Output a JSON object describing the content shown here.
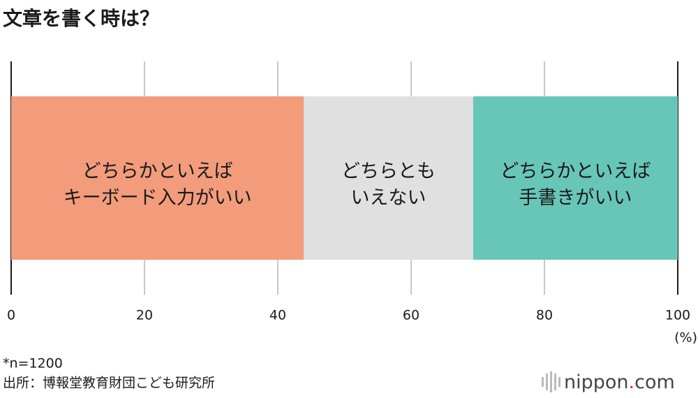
{
  "chart_data": {
    "type": "stacked-bar",
    "title": "文章を書く時は？",
    "series": [
      {
        "name": [
          "どちらかといえば",
          "キーボード入力がいい"
        ],
        "color": "#f29c7c",
        "values": [
          43.9
        ]
      },
      {
        "name": [
          "どちらとも",
          "いえない"
        ],
        "color": "#e0e0e0",
        "values": [
          25.4
        ]
      },
      {
        "name": [
          "どちらかといえば",
          "手書きがいい"
        ],
        "color": "#68c6b8",
        "values": [
          30.7
        ]
      }
    ],
    "xlim": [
      0,
      100
    ],
    "xticks": [
      0,
      20,
      40,
      60,
      80,
      100
    ],
    "x_unit": "(%)",
    "grid": true,
    "footnote": "*n=1200",
    "source": "出所：博報堂教育財団こども研究所",
    "logo": [
      "nippon",
      ".",
      "com"
    ]
  }
}
